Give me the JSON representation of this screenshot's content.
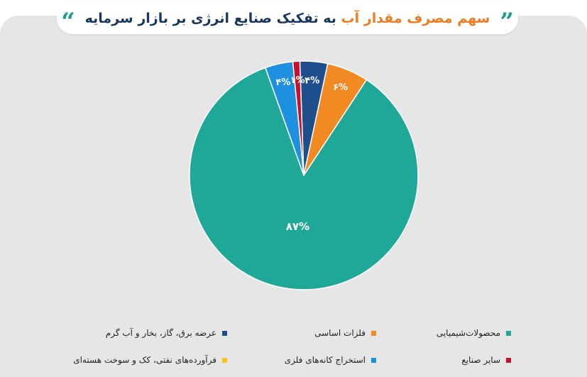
{
  "title": {
    "part1": "سهم مصرف مقدار آب",
    "part2": "به تفکیک صنایع انرژی بر بازار سرمایه",
    "open_quote": "”",
    "close_quote": "“"
  },
  "chart_data": {
    "type": "pie",
    "title": "سهم مصرف مقدار آب به تفکیک صنایع انرژی بر بازار سرمایه",
    "slices": [
      {
        "name": "عرضه برق، گاز، بخار و آب گرم",
        "value": 4,
        "label": "۴%",
        "color": "#1f4e8c"
      },
      {
        "name": "فلزات اساسی",
        "value": 6,
        "label": "۶%",
        "color": "#f18a22"
      },
      {
        "name": "محصولات‌شیمیایی",
        "value": 87,
        "label": "۸۷%",
        "color": "#1fa797"
      },
      {
        "name": "استخراج کانه‌های فلزی",
        "value": 4,
        "label": "۴%",
        "color": "#1e90e0"
      },
      {
        "name": "سایر صنایع",
        "value": 1,
        "label": "۱%",
        "color": "#c8102e"
      },
      {
        "name": "فرآورده‌های نفتی، کک و سوخت هسته‌ای",
        "value": 0,
        "label": "",
        "color": "#f5c518"
      }
    ],
    "legend_position": "bottom"
  },
  "legend": [
    {
      "label": "محصولات‌شیمیایی",
      "color": "#1fa797"
    },
    {
      "label": "فلزات اساسی",
      "color": "#f18a22"
    },
    {
      "label": "عرضه برق، گاز، بخار و آب گرم",
      "color": "#1f4e8c"
    },
    {
      "label": "سایر صنایع",
      "color": "#c8102e"
    },
    {
      "label": "استخراج کانه‌های فلزی",
      "color": "#1e90e0"
    },
    {
      "label": "فرآورده‌های نفتی، کک و سوخت هسته‌ای",
      "color": "#f5c518"
    }
  ]
}
